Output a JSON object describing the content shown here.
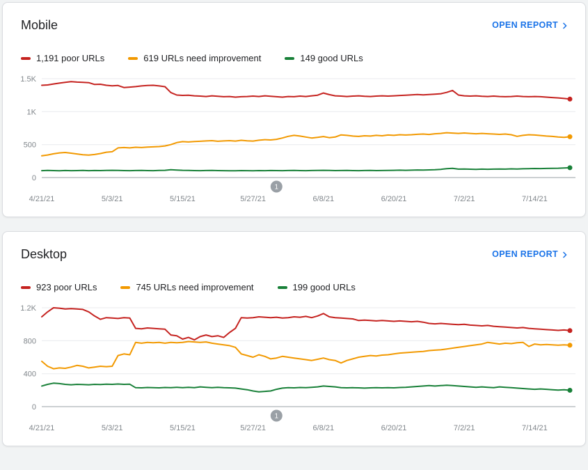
{
  "cards": [
    {
      "title": "Mobile",
      "open_report": {
        "label": "OPEN REPORT",
        "color": "#1a73e8"
      },
      "legend": [
        {
          "label": "1,191 poor URLs",
          "color": "#c5221f"
        },
        {
          "label": "619 URLs need improvement",
          "color": "#f29900"
        },
        {
          "label": "149 good URLs",
          "color": "#188038"
        }
      ]
    },
    {
      "title": "Desktop",
      "open_report": {
        "label": "OPEN REPORT",
        "color": "#1a73e8"
      },
      "legend": [
        {
          "label": "923 poor URLs",
          "color": "#c5221f"
        },
        {
          "label": "745 URLs need improvement",
          "color": "#f29900"
        },
        {
          "label": "199 good URLs",
          "color": "#188038"
        }
      ]
    }
  ],
  "chart_data": [
    {
      "type": "line",
      "title": "Mobile",
      "ylim": [
        0,
        1500
      ],
      "grid": true,
      "y_ticks": [
        {
          "v": 0,
          "label": "0"
        },
        {
          "v": 500,
          "label": "500"
        },
        {
          "v": 1000,
          "label": "1K"
        },
        {
          "v": 1500,
          "label": "1.5K"
        }
      ],
      "x_ticks": [
        {
          "day": 0,
          "label": "4/21/21"
        },
        {
          "day": 12,
          "label": "5/3/21"
        },
        {
          "day": 24,
          "label": "5/15/21"
        },
        {
          "day": 36,
          "label": "5/27/21"
        },
        {
          "day": 48,
          "label": "6/8/21"
        },
        {
          "day": 60,
          "label": "6/20/21"
        },
        {
          "day": 72,
          "label": "7/2/21"
        },
        {
          "day": 84,
          "label": "7/14/21"
        }
      ],
      "annotation": {
        "day": 40,
        "label": "1"
      },
      "series": [
        {
          "name": "good URLs",
          "key": "good",
          "color": "#188038",
          "latest": 149,
          "values": [
            105,
            108,
            106,
            104,
            107,
            105,
            106,
            108,
            105,
            107,
            106,
            108,
            110,
            108,
            106,
            105,
            107,
            108,
            106,
            105,
            108,
            110,
            118,
            114,
            110,
            108,
            106,
            105,
            107,
            108,
            106,
            105,
            103,
            104,
            106,
            105,
            104,
            106,
            105,
            107,
            106,
            105,
            107,
            108,
            106,
            105,
            107,
            108,
            110,
            108,
            106,
            107,
            108,
            106,
            105,
            107,
            108,
            106,
            107,
            108,
            110,
            112,
            110,
            112,
            115,
            113,
            116,
            118,
            125,
            135,
            140,
            128,
            130,
            127,
            125,
            128,
            126,
            128,
            130,
            128,
            132,
            130,
            133,
            135,
            137,
            136,
            138,
            140,
            142,
            145,
            149
          ]
        },
        {
          "name": "URLs need improvement",
          "key": "needs-improvement",
          "color": "#f29900",
          "latest": 619,
          "values": [
            330,
            342,
            360,
            374,
            380,
            370,
            358,
            346,
            340,
            350,
            364,
            384,
            392,
            450,
            455,
            450,
            460,
            455,
            462,
            466,
            470,
            480,
            500,
            530,
            545,
            540,
            546,
            550,
            556,
            560,
            550,
            556,
            560,
            554,
            565,
            558,
            554,
            566,
            575,
            570,
            580,
            600,
            625,
            640,
            630,
            615,
            600,
            610,
            622,
            605,
            615,
            648,
            640,
            630,
            624,
            634,
            630,
            640,
            634,
            645,
            640,
            650,
            645,
            650,
            656,
            660,
            654,
            664,
            670,
            680,
            675,
            670,
            676,
            670,
            664,
            670,
            664,
            660,
            655,
            660,
            650,
            625,
            640,
            650,
            645,
            638,
            630,
            624,
            615,
            610,
            619
          ]
        },
        {
          "name": "poor URLs",
          "key": "poor",
          "color": "#c5221f",
          "latest": 1191,
          "values": [
            1400,
            1405,
            1420,
            1432,
            1445,
            1455,
            1448,
            1444,
            1440,
            1412,
            1416,
            1400,
            1392,
            1396,
            1366,
            1372,
            1380,
            1390,
            1396,
            1400,
            1390,
            1378,
            1290,
            1252,
            1246,
            1250,
            1240,
            1236,
            1230,
            1240,
            1234,
            1226,
            1230,
            1220,
            1226,
            1230,
            1236,
            1230,
            1240,
            1234,
            1226,
            1220,
            1230,
            1226,
            1236,
            1230,
            1240,
            1250,
            1282,
            1258,
            1240,
            1236,
            1230,
            1236,
            1240,
            1234,
            1230,
            1236,
            1240,
            1236,
            1240,
            1245,
            1250,
            1255,
            1260,
            1254,
            1260,
            1266,
            1272,
            1292,
            1322,
            1252,
            1240,
            1236,
            1240,
            1234,
            1230,
            1236,
            1230,
            1226,
            1230,
            1236,
            1230,
            1226,
            1230,
            1226,
            1220,
            1214,
            1208,
            1200,
            1191
          ]
        }
      ]
    },
    {
      "type": "line",
      "title": "Desktop",
      "ylim": [
        0,
        1200
      ],
      "grid": true,
      "y_ticks": [
        {
          "v": 0,
          "label": "0"
        },
        {
          "v": 400,
          "label": "400"
        },
        {
          "v": 800,
          "label": "800"
        },
        {
          "v": 1200,
          "label": "1.2K"
        }
      ],
      "x_ticks": [
        {
          "day": 0,
          "label": "4/21/21"
        },
        {
          "day": 12,
          "label": "5/3/21"
        },
        {
          "day": 24,
          "label": "5/15/21"
        },
        {
          "day": 36,
          "label": "5/27/21"
        },
        {
          "day": 48,
          "label": "6/8/21"
        },
        {
          "day": 60,
          "label": "6/20/21"
        },
        {
          "day": 72,
          "label": "7/2/21"
        },
        {
          "day": 84,
          "label": "7/14/21"
        }
      ],
      "annotation": {
        "day": 40,
        "label": "1"
      },
      "series": [
        {
          "name": "good URLs",
          "key": "good",
          "color": "#188038",
          "latest": 199,
          "values": [
            250,
            270,
            285,
            280,
            270,
            265,
            270,
            268,
            265,
            270,
            268,
            272,
            270,
            275,
            270,
            272,
            230,
            228,
            232,
            230,
            228,
            232,
            230,
            235,
            230,
            235,
            230,
            240,
            235,
            230,
            235,
            230,
            228,
            225,
            215,
            205,
            190,
            180,
            185,
            190,
            210,
            225,
            230,
            228,
            232,
            230,
            235,
            240,
            250,
            245,
            240,
            230,
            228,
            230,
            228,
            225,
            228,
            230,
            228,
            230,
            228,
            232,
            235,
            240,
            245,
            250,
            255,
            250,
            255,
            260,
            255,
            250,
            245,
            240,
            235,
            240,
            235,
            230,
            240,
            235,
            230,
            225,
            220,
            215,
            210,
            215,
            210,
            205,
            200,
            205,
            199
          ]
        },
        {
          "name": "URLs need improvement",
          "key": "needs-improvement",
          "color": "#f29900",
          "latest": 745,
          "values": [
            550,
            490,
            460,
            470,
            465,
            480,
            500,
            490,
            470,
            480,
            490,
            485,
            490,
            620,
            640,
            630,
            780,
            770,
            780,
            775,
            780,
            770,
            780,
            775,
            780,
            790,
            785,
            780,
            785,
            770,
            760,
            750,
            740,
            720,
            640,
            620,
            600,
            630,
            610,
            580,
            590,
            610,
            600,
            590,
            580,
            570,
            560,
            575,
            590,
            570,
            560,
            530,
            560,
            580,
            600,
            610,
            620,
            615,
            625,
            630,
            640,
            650,
            655,
            660,
            665,
            670,
            680,
            685,
            690,
            700,
            710,
            720,
            730,
            740,
            750,
            760,
            780,
            770,
            760,
            770,
            765,
            775,
            780,
            730,
            760,
            750,
            755,
            750,
            745,
            750,
            745
          ]
        },
        {
          "name": "poor URLs",
          "key": "poor",
          "color": "#c5221f",
          "latest": 923,
          "values": [
            1090,
            1150,
            1200,
            1195,
            1185,
            1190,
            1185,
            1180,
            1150,
            1100,
            1060,
            1080,
            1075,
            1070,
            1080,
            1075,
            950,
            945,
            955,
            950,
            945,
            940,
            870,
            860,
            820,
            840,
            810,
            850,
            870,
            850,
            860,
            840,
            900,
            950,
            1080,
            1075,
            1080,
            1090,
            1085,
            1080,
            1085,
            1075,
            1080,
            1090,
            1085,
            1095,
            1080,
            1100,
            1130,
            1090,
            1080,
            1075,
            1070,
            1065,
            1045,
            1050,
            1045,
            1040,
            1045,
            1040,
            1035,
            1040,
            1035,
            1030,
            1035,
            1025,
            1010,
            1005,
            1010,
            1005,
            1000,
            995,
            1000,
            990,
            985,
            980,
            985,
            975,
            970,
            965,
            960,
            955,
            960,
            950,
            945,
            940,
            935,
            930,
            925,
            930,
            923
          ]
        }
      ]
    }
  ]
}
